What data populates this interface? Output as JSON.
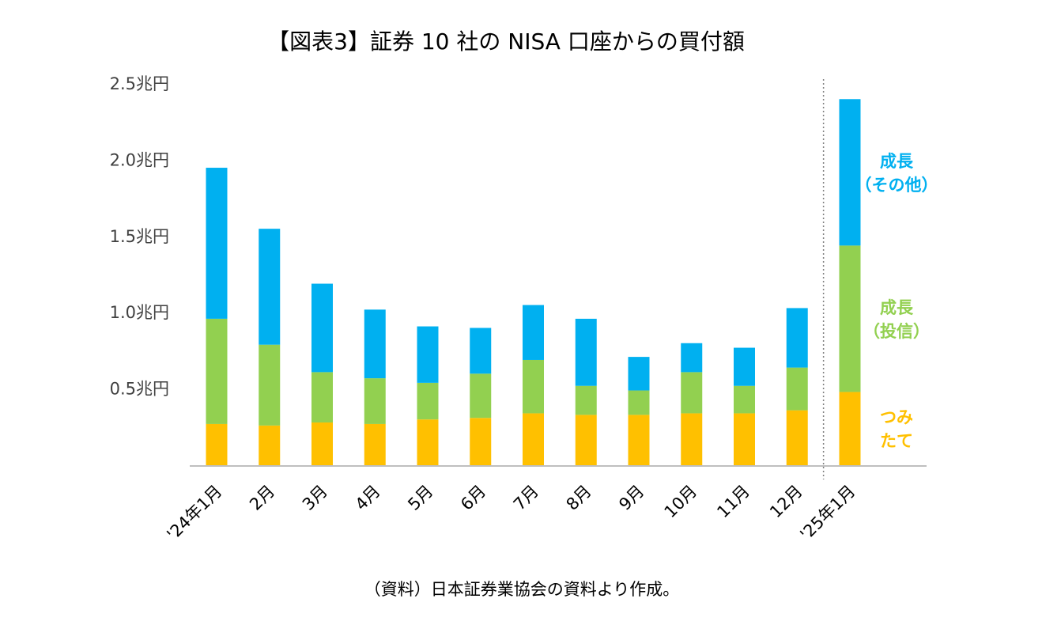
{
  "colors": {
    "tsumitate": "#FFC000",
    "growth_fund": "#92D050",
    "growth_other": "#00B0F0",
    "axis": "#BFBFBF",
    "divider": "#7F7F7F"
  },
  "chart_data": {
    "type": "bar",
    "stacked": true,
    "title": "【図表3】証券 10 社の NISA 口座からの買付額",
    "source": "（資料）日本証券業協会の資料より作成。",
    "xlabel": "",
    "ylabel": "",
    "ylim": [
      0,
      2.5
    ],
    "grid": false,
    "yticks": [
      {
        "value": 0.5,
        "label": "0.5兆円"
      },
      {
        "value": 1.0,
        "label": "1.0兆円"
      },
      {
        "value": 1.5,
        "label": "1.5兆円"
      },
      {
        "value": 2.0,
        "label": "2.0兆円"
      },
      {
        "value": 2.5,
        "label": "2.5兆円"
      }
    ],
    "categories": [
      "'24年1月",
      "2月",
      "3月",
      "4月",
      "5月",
      "6月",
      "7月",
      "8月",
      "9月",
      "10月",
      "11月",
      "12月",
      "'25年1月"
    ],
    "series": [
      {
        "name": "つみたて",
        "color_key": "tsumitate",
        "legend_lines": [
          "つみ",
          "たて"
        ],
        "values": [
          0.27,
          0.26,
          0.28,
          0.27,
          0.3,
          0.31,
          0.34,
          0.33,
          0.33,
          0.34,
          0.34,
          0.36,
          0.48
        ]
      },
      {
        "name": "成長（投信）",
        "color_key": "growth_fund",
        "legend_lines": [
          "成長",
          "（投信）"
        ],
        "values": [
          0.69,
          0.53,
          0.33,
          0.3,
          0.24,
          0.29,
          0.35,
          0.19,
          0.16,
          0.27,
          0.18,
          0.28,
          0.96
        ]
      },
      {
        "name": "成長（その他）",
        "color_key": "growth_other",
        "legend_lines": [
          "成長",
          "（その他）"
        ],
        "values": [
          0.99,
          0.76,
          0.58,
          0.45,
          0.37,
          0.3,
          0.36,
          0.44,
          0.22,
          0.19,
          0.25,
          0.39,
          0.96
        ]
      }
    ],
    "divider_before_category": 12,
    "legend_position": "right, beside last bar"
  }
}
